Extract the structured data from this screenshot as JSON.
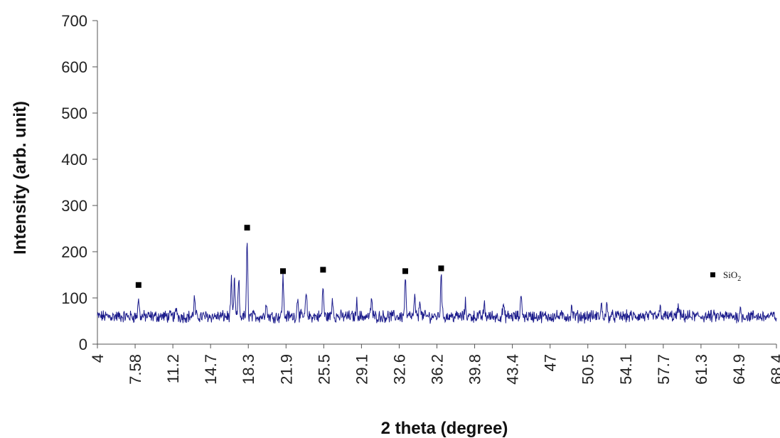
{
  "chart_data": {
    "type": "line",
    "xlabel": "2 theta (degree)",
    "ylabel": "Intensity (arb. unit)",
    "ylim": [
      0,
      700
    ],
    "yticks": [
      0,
      100,
      200,
      300,
      400,
      500,
      600,
      700
    ],
    "xticks": [
      "4",
      "7.58",
      "11.2",
      "14.7",
      "18.3",
      "21.9",
      "25.5",
      "29.1",
      "32.6",
      "36.2",
      "39.8",
      "43.4",
      "47",
      "50.5",
      "54.1",
      "57.7",
      "61.3",
      "64.9",
      "68.4"
    ],
    "xlim": [
      4,
      68.4
    ],
    "grid": false,
    "legend_position": "right",
    "series": [
      {
        "name": "SiO2",
        "color": "#1c1c8c",
        "baseline": 60,
        "peaks": [
          {
            "x": 7.9,
            "y": 100
          },
          {
            "x": 11.5,
            "y": 78
          },
          {
            "x": 13.2,
            "y": 100
          },
          {
            "x": 16.7,
            "y": 135
          },
          {
            "x": 17.0,
            "y": 138
          },
          {
            "x": 17.4,
            "y": 140
          },
          {
            "x": 18.2,
            "y": 218
          },
          {
            "x": 20.0,
            "y": 95
          },
          {
            "x": 21.6,
            "y": 145
          },
          {
            "x": 23.0,
            "y": 105
          },
          {
            "x": 23.8,
            "y": 110
          },
          {
            "x": 25.4,
            "y": 125
          },
          {
            "x": 26.3,
            "y": 100
          },
          {
            "x": 28.6,
            "y": 90
          },
          {
            "x": 30.0,
            "y": 100
          },
          {
            "x": 33.2,
            "y": 145
          },
          {
            "x": 34.1,
            "y": 100
          },
          {
            "x": 34.6,
            "y": 100
          },
          {
            "x": 36.6,
            "y": 155
          },
          {
            "x": 38.9,
            "y": 88
          },
          {
            "x": 40.7,
            "y": 85
          },
          {
            "x": 42.5,
            "y": 85
          },
          {
            "x": 44.2,
            "y": 110
          },
          {
            "x": 49.0,
            "y": 80
          },
          {
            "x": 51.8,
            "y": 85
          },
          {
            "x": 52.3,
            "y": 82
          },
          {
            "x": 57.4,
            "y": 80
          },
          {
            "x": 59.1,
            "y": 82
          },
          {
            "x": 65.0,
            "y": 75
          }
        ]
      }
    ],
    "markers": [
      {
        "x": 7.9,
        "y": 128
      },
      {
        "x": 18.2,
        "y": 252
      },
      {
        "x": 21.6,
        "y": 158
      },
      {
        "x": 25.4,
        "y": 161
      },
      {
        "x": 33.2,
        "y": 158
      },
      {
        "x": 36.6,
        "y": 164
      }
    ],
    "legend": {
      "label": "SiO",
      "subscript": "2"
    }
  }
}
